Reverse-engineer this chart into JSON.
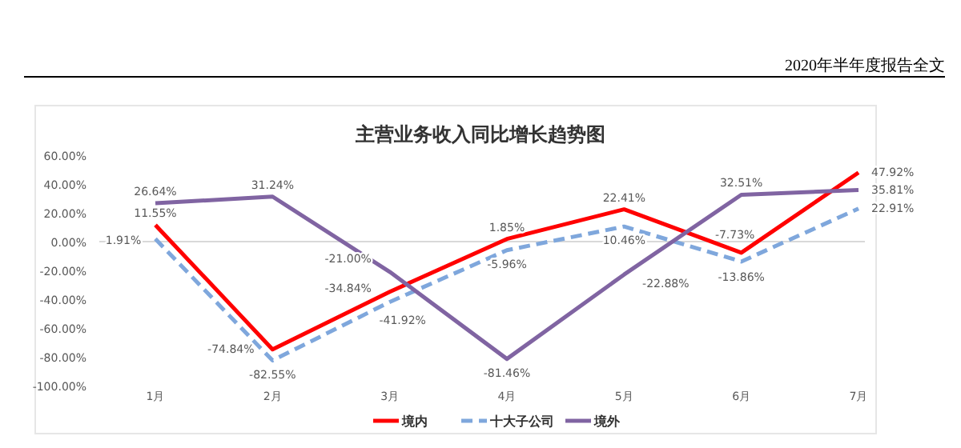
{
  "chart_data": {
    "type": "line",
    "title": "主营业务收入同比增长趋势图",
    "annotations": [
      "2020年半年度报告全文"
    ],
    "categories": [
      "1月",
      "2月",
      "3月",
      "4月",
      "5月",
      "6月",
      "7月"
    ],
    "series": [
      {
        "name": "境内",
        "color": "#ff0000",
        "line_style": "solid",
        "values": [
          11.55,
          -74.84,
          -34.84,
          1.85,
          22.41,
          -7.73,
          47.92
        ],
        "value_labels": [
          "11.55%",
          "-74.84%",
          "-34.84%",
          "1.85%",
          "22.41%",
          "-7.73%",
          "47.92%"
        ]
      },
      {
        "name": "十大子公司",
        "color": "#7fa7dc",
        "line_style": "dashed",
        "values": [
          1.91,
          -82.55,
          -41.92,
          -5.96,
          10.46,
          -13.86,
          22.91
        ],
        "value_labels": [
          "1.91%",
          "-82.55%",
          "-41.92%",
          "-5.96%",
          "10.46%",
          "-13.86%",
          "22.91%"
        ]
      },
      {
        "name": "境外",
        "color": "#8064a2",
        "line_style": "solid",
        "values": [
          26.64,
          31.24,
          -21.0,
          -81.46,
          -22.88,
          32.51,
          35.81
        ],
        "value_labels": [
          "26.64%",
          "31.24%",
          "-21.00%",
          "-81.46%",
          "-22.88%",
          "32.51%",
          "35.81%"
        ]
      }
    ],
    "ylim": [
      -100,
      60
    ],
    "yticks": [
      {
        "value": 60,
        "label": "60.00%"
      },
      {
        "value": 40,
        "label": "40.00%"
      },
      {
        "value": 20,
        "label": "20.00%"
      },
      {
        "value": 0,
        "label": "0.00%"
      },
      {
        "value": -20,
        "label": "-20.00%"
      },
      {
        "value": -40,
        "label": "-40.00%"
      },
      {
        "value": -60,
        "label": "-60.00%"
      },
      {
        "value": -80,
        "label": "-80.00%"
      },
      {
        "value": -100,
        "label": "-100.00%"
      }
    ],
    "ref_lines": [
      {
        "axis": "y",
        "value": 0,
        "color": "#d9d9d9"
      }
    ],
    "grid": false,
    "legend": "bottom",
    "marker": "none"
  }
}
